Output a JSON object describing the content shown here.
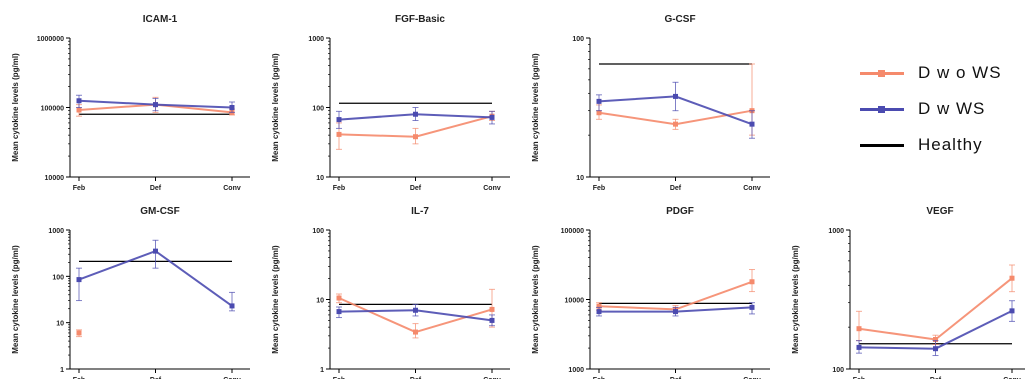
{
  "legend": [
    {
      "label": "D w o WS",
      "color": "#f58a6c"
    },
    {
      "label": "D w WS",
      "color": "#4b4bb0"
    },
    {
      "label": "Healthy",
      "color": "#000000"
    }
  ],
  "ylabel": "Mean cytokine levels (pg/ml)",
  "chart_data": [
    {
      "type": "line",
      "title": "ICAM-1",
      "scale": "log",
      "ylim": [
        10000,
        1000000
      ],
      "yticks": [
        "10000",
        "100000",
        "1000000"
      ],
      "categories": [
        "Feb",
        "Def",
        "Conv"
      ],
      "healthy": 80000,
      "series": [
        {
          "name": "D w o WS",
          "values": [
            92000,
            110000,
            85000
          ],
          "err_lo": [
            75000,
            85000,
            78000
          ],
          "err_hi": [
            110000,
            140000,
            95000
          ]
        },
        {
          "name": "D w WS",
          "values": [
            125000,
            110000,
            100000
          ],
          "err_lo": [
            100000,
            90000,
            85000
          ],
          "err_hi": [
            150000,
            135000,
            120000
          ]
        }
      ]
    },
    {
      "type": "line",
      "title": "FGF-Basic",
      "scale": "log",
      "ylim": [
        10,
        1000
      ],
      "yticks": [
        "10",
        "100",
        "1000"
      ],
      "categories": [
        "Feb",
        "Def",
        "Conv"
      ],
      "healthy": 115,
      "series": [
        {
          "name": "D w o WS",
          "values": [
            41,
            38,
            75
          ],
          "err_lo": [
            25,
            30,
            65
          ],
          "err_hi": [
            60,
            50,
            88
          ]
        },
        {
          "name": "D w WS",
          "values": [
            67,
            80,
            72
          ],
          "err_lo": [
            50,
            65,
            58
          ],
          "err_hi": [
            88,
            100,
            88
          ]
        }
      ]
    },
    {
      "type": "line",
      "title": "G-CSF",
      "scale": "log",
      "ylim": [
        10,
        100
      ],
      "yticks": [
        "10",
        "100"
      ],
      "categories": [
        "Feb",
        "Def",
        "Conv"
      ],
      "healthy": 65,
      "series": [
        {
          "name": "D w o WS",
          "values": [
            29,
            24,
            30
          ],
          "err_lo": [
            26,
            22,
            20
          ],
          "err_hi": [
            33,
            26,
            65
          ]
        },
        {
          "name": "D w WS",
          "values": [
            35,
            38,
            24
          ],
          "err_lo": [
            30,
            30,
            19
          ],
          "err_hi": [
            39,
            48,
            30
          ]
        }
      ]
    },
    {
      "type": "line",
      "title": "GM-CSF",
      "scale": "log",
      "ylim": [
        1,
        1000
      ],
      "yticks": [
        "1",
        "10",
        "100",
        "1000"
      ],
      "categories": [
        "Feb",
        "Def",
        "Conv"
      ],
      "healthy": 210,
      "series": [
        {
          "name": "D w o WS",
          "values": [
            6,
            null,
            null
          ],
          "err_lo": [
            5,
            null,
            null
          ],
          "err_hi": [
            7,
            null,
            null
          ]
        },
        {
          "name": "D w WS",
          "values": [
            85,
            350,
            23
          ],
          "err_lo": [
            30,
            150,
            18
          ],
          "err_hi": [
            150,
            600,
            45
          ]
        }
      ]
    },
    {
      "type": "line",
      "title": "IL-7",
      "scale": "log",
      "ylim": [
        1,
        100
      ],
      "yticks": [
        "1",
        "10",
        "100"
      ],
      "categories": [
        "Feb",
        "Def",
        "Conv"
      ],
      "healthy": 8.5,
      "series": [
        {
          "name": "D w o WS",
          "values": [
            10.5,
            3.4,
            7.2
          ],
          "err_lo": [
            9,
            2.8,
            4
          ],
          "err_hi": [
            12,
            4.5,
            14
          ]
        },
        {
          "name": "D w WS",
          "values": [
            6.7,
            7,
            5
          ],
          "err_lo": [
            5.5,
            5.8,
            4.2
          ],
          "err_hi": [
            7.8,
            8.5,
            6
          ]
        }
      ]
    },
    {
      "type": "line",
      "title": "PDGF",
      "scale": "log",
      "ylim": [
        1000,
        100000
      ],
      "yticks": [
        "1000",
        "10000",
        "100000"
      ],
      "categories": [
        "Feb",
        "Def",
        "Conv"
      ],
      "healthy": 8800,
      "series": [
        {
          "name": "D w o WS",
          "values": [
            8000,
            7200,
            18000
          ],
          "err_lo": [
            7000,
            6500,
            13000
          ],
          "err_hi": [
            9000,
            8200,
            27000
          ]
        },
        {
          "name": "D w WS",
          "values": [
            6700,
            6700,
            7700
          ],
          "err_lo": [
            5800,
            5800,
            6200
          ],
          "err_hi": [
            7700,
            7700,
            9000
          ]
        }
      ]
    },
    {
      "type": "line",
      "title": "VEGF",
      "scale": "log",
      "ylim": [
        100,
        1000
      ],
      "yticks": [
        "100",
        "1000"
      ],
      "categories": [
        "Feb",
        "Def",
        "Conv"
      ],
      "healthy": 152,
      "series": [
        {
          "name": "D w o WS",
          "values": [
            195,
            163,
            450
          ],
          "err_lo": [
            160,
            150,
            360
          ],
          "err_hi": [
            260,
            175,
            560
          ]
        },
        {
          "name": "D w WS",
          "values": [
            143,
            140,
            262
          ],
          "err_lo": [
            130,
            125,
            220
          ],
          "err_hi": [
            160,
            160,
            310
          ]
        }
      ]
    }
  ]
}
